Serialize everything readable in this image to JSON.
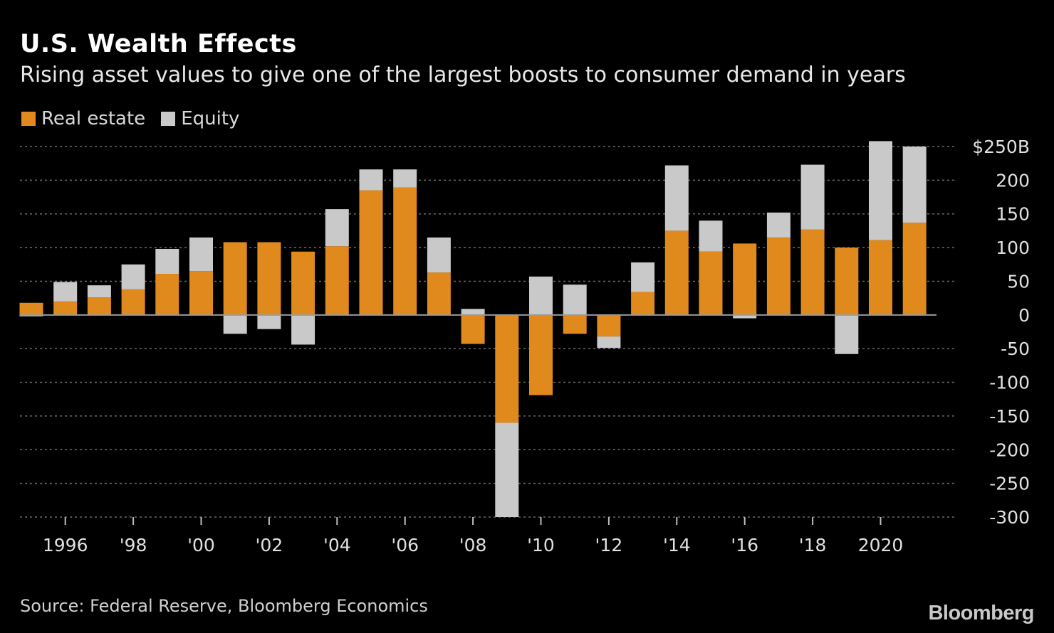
{
  "header": {
    "title": "U.S. Wealth Effects",
    "subtitle": "Rising asset values to give one of the largest boosts to consumer demand in years"
  },
  "footer": {
    "source": "Source: Federal Reserve, Bloomberg Economics",
    "logo": "Bloomberg"
  },
  "colors": {
    "real_estate": "#e08a1e",
    "equity": "#c9c9c9",
    "grid": "#6b6b6b",
    "text": "#e0e0e0"
  },
  "chart_data": {
    "type": "bar",
    "stacked": true,
    "x": [
      1995,
      1996,
      1997,
      1998,
      1999,
      2000,
      2001,
      2002,
      2003,
      2004,
      2005,
      2006,
      2007,
      2008,
      2009,
      2010,
      2011,
      2012,
      2013,
      2014,
      2015,
      2016,
      2017,
      2018,
      2019,
      2020,
      2021
    ],
    "series": [
      {
        "name": "Real estate",
        "values": [
          18,
          20,
          26,
          38,
          61,
          65,
          108,
          108,
          94,
          102,
          185,
          189,
          63,
          -43,
          -160,
          -119,
          -28,
          -32,
          34,
          125,
          94,
          106,
          115,
          127,
          100,
          111,
          137
        ]
      },
      {
        "name": "Equity",
        "values": [
          -2,
          29,
          18,
          37,
          37,
          50,
          -28,
          -21,
          -44,
          55,
          31,
          27,
          52,
          9,
          -140,
          57,
          45,
          -17,
          44,
          97,
          46,
          -5,
          37,
          96,
          -58,
          147,
          113
        ]
      }
    ],
    "ylim": [
      -300,
      250
    ],
    "yticks": [
      -300,
      -250,
      -200,
      -150,
      -100,
      -50,
      0,
      50,
      100,
      150,
      200,
      250
    ],
    "ytick_labels": [
      "-300",
      "-250",
      "-200",
      "-150",
      "-100",
      "-50",
      "0",
      "50",
      "100",
      "150",
      "200",
      "$250B"
    ],
    "xticks": [
      {
        "year": 1996,
        "label": "1996"
      },
      {
        "year": 1998,
        "label": "'98"
      },
      {
        "year": 2000,
        "label": "'00"
      },
      {
        "year": 2002,
        "label": "'02"
      },
      {
        "year": 2004,
        "label": "'04"
      },
      {
        "year": 2006,
        "label": "'06"
      },
      {
        "year": 2008,
        "label": "'08"
      },
      {
        "year": 2010,
        "label": "'10"
      },
      {
        "year": 2012,
        "label": "'12"
      },
      {
        "year": 2014,
        "label": "'14"
      },
      {
        "year": 2016,
        "label": "'16"
      },
      {
        "year": 2018,
        "label": "'18"
      },
      {
        "year": 2020,
        "label": "2020"
      }
    ],
    "legend": [
      "Real estate",
      "Equity"
    ],
    "legend_position": "top-left",
    "grid": true
  }
}
